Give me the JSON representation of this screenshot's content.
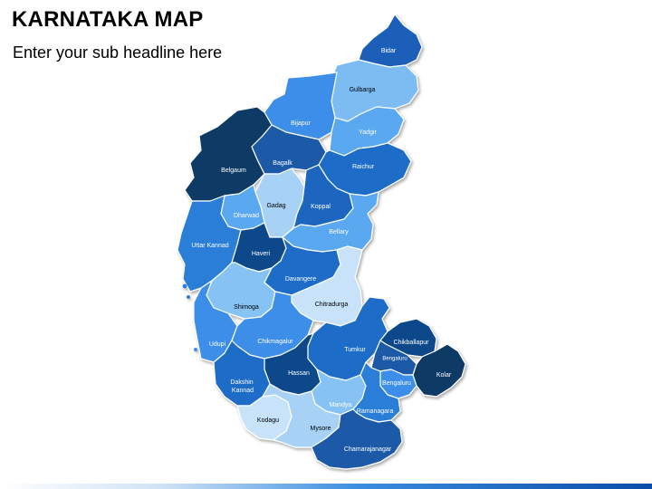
{
  "header": {
    "title": "KARNATAKA MAP",
    "subtitle": "Enter your sub headline here"
  },
  "districts": [
    {
      "id": "bidar",
      "label": "Bidar",
      "fill": "#1e5fb8",
      "text": "#ffffff"
    },
    {
      "id": "gulbarga",
      "label": "Gulbarga",
      "fill": "#7cbcf2",
      "text": "#000000"
    },
    {
      "id": "bijapur",
      "label": "Bijapur",
      "fill": "#3d8ee8",
      "text": "#ffffff"
    },
    {
      "id": "yadgir",
      "label": "Yadgir",
      "fill": "#5aa8f0",
      "text": "#ffffff"
    },
    {
      "id": "belgaum",
      "label": "Belgaum",
      "fill": "#0b3a66",
      "text": "#ffffff"
    },
    {
      "id": "bagalkot",
      "label": "Bagalk",
      "fill": "#1b5aa8",
      "text": "#ffffff"
    },
    {
      "id": "raichur",
      "label": "Raichur",
      "fill": "#1f6cc8",
      "text": "#ffffff"
    },
    {
      "id": "gadag",
      "label": "Gadag",
      "fill": "#a7d1f5",
      "text": "#000000"
    },
    {
      "id": "koppal",
      "label": "Koppal",
      "fill": "#1d66bf",
      "text": "#ffffff"
    },
    {
      "id": "dharwad",
      "label": "Dharwad",
      "fill": "#5aa8f0",
      "text": "#ffffff"
    },
    {
      "id": "bellary",
      "label": "Bellary",
      "fill": "#5aa8f0",
      "text": "#ffffff"
    },
    {
      "id": "uttar-kannad",
      "label": "Uttar Kannad",
      "fill": "#2c7ed8",
      "text": "#ffffff"
    },
    {
      "id": "haveri",
      "label": "Haveri",
      "fill": "#0d4a8a",
      "text": "#ffffff"
    },
    {
      "id": "davangere",
      "label": "Davangere",
      "fill": "#1f6cc8",
      "text": "#ffffff"
    },
    {
      "id": "shimoga",
      "label": "Shimoga",
      "fill": "#86c2f4",
      "text": "#000000"
    },
    {
      "id": "chitradurga",
      "label": "Chitradurga",
      "fill": "#c7e2f9",
      "text": "#000000"
    },
    {
      "id": "udupi",
      "label": "Udupi",
      "fill": "#3d8ee8",
      "text": "#ffffff"
    },
    {
      "id": "chikmagalur",
      "label": "Chikmagalur",
      "fill": "#3d8ee8",
      "text": "#ffffff"
    },
    {
      "id": "tumkur",
      "label": "Tumkur",
      "fill": "#1f6cc8",
      "text": "#ffffff"
    },
    {
      "id": "chikballapur",
      "label": "Chikballapur",
      "fill": "#0d4a8a",
      "text": "#ffffff"
    },
    {
      "id": "bengaluru-rural",
      "label": "Bengaluru",
      "fill": "#1b5aa8",
      "text": "#ffffff"
    },
    {
      "id": "bengaluru",
      "label": "Bengaluru",
      "fill": "#3d8ee8",
      "text": "#ffffff"
    },
    {
      "id": "kolar",
      "label": "Kolar",
      "fill": "#0b3a66",
      "text": "#ffffff"
    },
    {
      "id": "hassan",
      "label": "Hassan",
      "fill": "#0d4a8a",
      "text": "#ffffff"
    },
    {
      "id": "dakshin-kannad",
      "label": "Dakshin Kannad",
      "fill": "#1f6cc8",
      "text": "#ffffff"
    },
    {
      "id": "mandya",
      "label": "Mandya",
      "fill": "#86c2f4",
      "text": "#ffffff"
    },
    {
      "id": "ramanagara",
      "label": "Ramanagara",
      "fill": "#2c7ed8",
      "text": "#ffffff"
    },
    {
      "id": "kodagu",
      "label": "Kodagu",
      "fill": "#c7e2f9",
      "text": "#000000"
    },
    {
      "id": "mysore",
      "label": "Mysore",
      "fill": "#a7d1f5",
      "text": "#000000"
    },
    {
      "id": "chamarajanagar",
      "label": "Chamarajanagar",
      "fill": "#1b5aa8",
      "text": "#ffffff"
    }
  ]
}
